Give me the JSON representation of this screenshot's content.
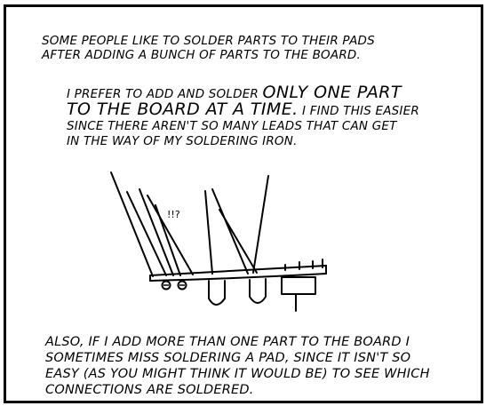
{
  "caption_top": {
    "line1": "Some people like to solder parts to their pads",
    "line2": "after adding a bunch of parts to the board."
  },
  "caption_middle": {
    "line1_small": "I prefer to add and solder ",
    "line1_big": "only one part",
    "line2_big": "to the board at a time.",
    "line2_small": " I find this easier",
    "line3": "since there aren't so many leads that can get",
    "line4": "in the way of my soldering iron."
  },
  "drawing": {
    "exclamation": "!!?"
  },
  "caption_bottom": {
    "line1": "Also, if I add more than one part to the board I",
    "line2": "sometimes miss soldering a pad, since it isn't so",
    "line3": "easy (as you might think it would be) to see which",
    "line4": "connections are soldered."
  }
}
